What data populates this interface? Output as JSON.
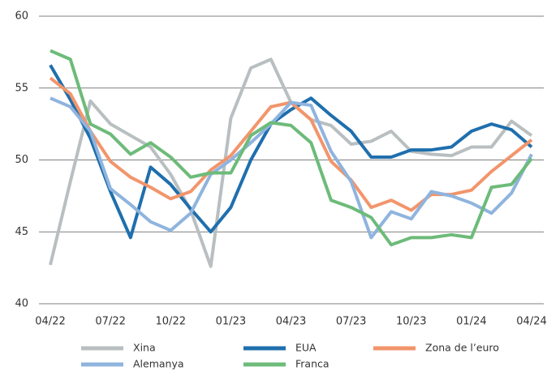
{
  "chart_data": {
    "type": "line",
    "categories": [
      "04/22",
      null,
      null,
      "07/22",
      null,
      null,
      "10/22",
      null,
      null,
      "01/23",
      null,
      null,
      "04/23",
      null,
      null,
      "07/23",
      null,
      null,
      "10/23",
      null,
      null,
      "01/24",
      null,
      null,
      "04/24"
    ],
    "ylim": [
      40,
      60
    ],
    "yticks": [
      40,
      45,
      50,
      55,
      60
    ],
    "grid": true,
    "series": [
      {
        "name": "Xina",
        "color": "#b9bfc1",
        "values": [
          42.7,
          48.5,
          54.1,
          52.5,
          51.7,
          50.9,
          49.0,
          46.5,
          42.6,
          52.9,
          56.4,
          57.0,
          54.0,
          52.8,
          52.4,
          51.1,
          51.3,
          52.0,
          50.6,
          50.4,
          50.3,
          50.9,
          50.9,
          52.7,
          51.7
        ]
      },
      {
        "name": "EUA",
        "color": "#1f6fad",
        "values": [
          56.6,
          54.2,
          51.5,
          47.8,
          44.6,
          49.5,
          48.3,
          46.6,
          45.0,
          46.7,
          50.0,
          52.5,
          53.5,
          54.3,
          53.1,
          52.0,
          50.2,
          50.2,
          50.7,
          50.7,
          50.9,
          52.0,
          52.5,
          52.1,
          50.9
        ]
      },
      {
        "name": "Zona de l’euro",
        "color": "#f2956b",
        "values": [
          55.7,
          54.6,
          52.0,
          49.9,
          48.8,
          48.1,
          47.3,
          47.8,
          49.3,
          50.3,
          52.0,
          53.7,
          54.0,
          52.8,
          49.9,
          48.6,
          46.7,
          47.2,
          46.5,
          47.6,
          47.6,
          47.9,
          49.2,
          50.3,
          51.4
        ]
      },
      {
        "name": "Alemanya",
        "color": "#8fb4de",
        "values": [
          54.3,
          53.7,
          52.0,
          48.0,
          46.9,
          45.7,
          45.1,
          46.3,
          49.0,
          50.0,
          51.2,
          52.5,
          54.0,
          53.8,
          50.6,
          48.5,
          44.6,
          46.4,
          45.9,
          47.8,
          47.5,
          47.0,
          46.3,
          47.7,
          50.4
        ]
      },
      {
        "name": "Franca",
        "color": "#6dbb7a",
        "values": [
          57.6,
          57.0,
          52.5,
          51.8,
          50.4,
          51.2,
          50.2,
          48.8,
          49.1,
          49.1,
          51.7,
          52.6,
          52.4,
          51.2,
          47.2,
          46.7,
          46.0,
          44.1,
          44.6,
          44.6,
          44.8,
          44.6,
          48.1,
          48.3,
          50.1
        ]
      }
    ]
  }
}
